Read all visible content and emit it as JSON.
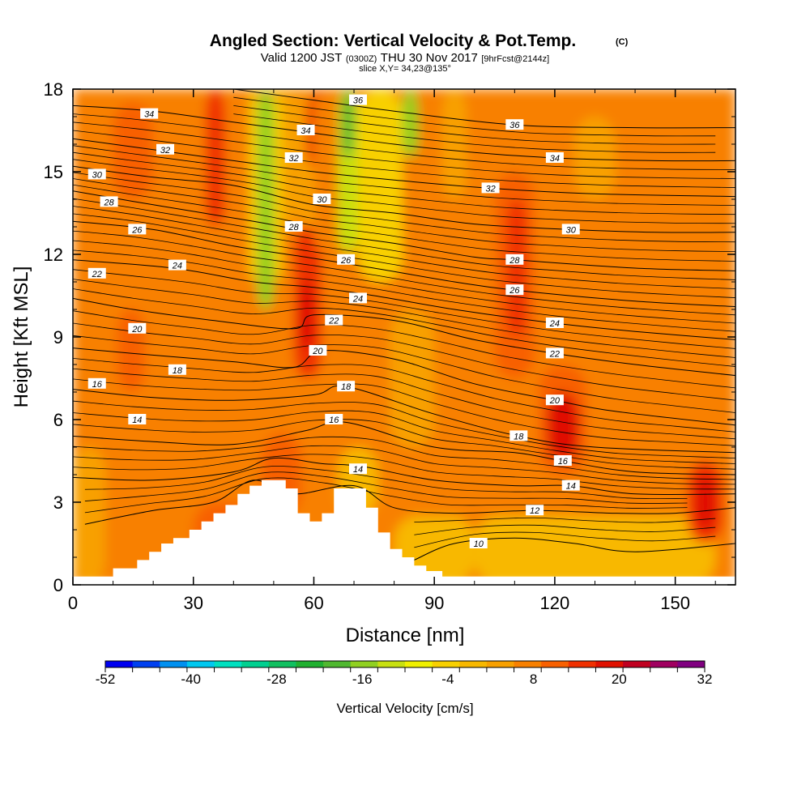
{
  "title": "Angled Section: Vertical Velocity & Pot.Temp.",
  "title_unit": "(C)",
  "subtitle_pre": "Valid 1200 JST",
  "subtitle_utc": "(0300Z)",
  "subtitle_date": "THU 30 Nov 2017",
  "subtitle_fcst": "[9hrFcst@2144z]",
  "slice_label": "slice X,Y= 34,23@135°",
  "chart_data": {
    "type": "heatmap",
    "xlabel": "Distance [nm]",
    "ylabel": "Height [Kft MSL]",
    "xlim": [
      0,
      165
    ],
    "ylim": [
      0,
      18
    ],
    "x_ticks": [
      "0",
      "30",
      "60",
      "90",
      "120",
      "150"
    ],
    "y_ticks": [
      "0",
      "3",
      "6",
      "9",
      "12",
      "15",
      "18"
    ],
    "colorbar": {
      "label": "Vertical Velocity [cm/s]",
      "tick_labels": [
        "-52",
        "-40",
        "-28",
        "-16",
        "-4",
        "8",
        "20",
        "32"
      ],
      "min": -52,
      "max": 32,
      "step": 4,
      "colors": [
        "#0000f0",
        "#0040f0",
        "#0090f0",
        "#00c8f0",
        "#00e0c0",
        "#00d090",
        "#10c060",
        "#20b030",
        "#50b830",
        "#90d020",
        "#c8e010",
        "#f0f000",
        "#f8d000",
        "#f8b800",
        "#f8a000",
        "#f88000",
        "#f86000",
        "#f03000",
        "#e01000",
        "#c00020",
        "#a00060",
        "#800080"
      ]
    },
    "field_regions": [
      {
        "x": [
          0,
          165
        ],
        "y": [
          0,
          18
        ],
        "w": 8
      },
      {
        "x": [
          0,
          8
        ],
        "y": [
          0,
          5
        ],
        "w": 4
      },
      {
        "x": [
          30,
          45
        ],
        "y": [
          0.4,
          3
        ],
        "w": 12
      },
      {
        "x": [
          47,
          57
        ],
        "y": [
          2.5,
          5.5
        ],
        "w": 12
      },
      {
        "x": [
          66,
          76
        ],
        "y": [
          2.5,
          5
        ],
        "w": 0
      },
      {
        "x": [
          80,
          100
        ],
        "y": [
          0,
          2.5
        ],
        "w": 0
      },
      {
        "x": [
          100,
          160
        ],
        "y": [
          0,
          2.5
        ],
        "w": 0
      },
      {
        "x": [
          11,
          18
        ],
        "y": [
          7,
          10
        ],
        "w": 12
      },
      {
        "x": [
          10,
          20
        ],
        "y": [
          14,
          17.5
        ],
        "w": 12
      },
      {
        "x": [
          33,
          38
        ],
        "y": [
          13,
          18
        ],
        "w": 16
      },
      {
        "x": [
          46,
          50
        ],
        "y": [
          10,
          18
        ],
        "w": -16
      },
      {
        "x": [
          44,
          46
        ],
        "y": [
          11,
          18
        ],
        "w": -4
      },
      {
        "x": [
          50,
          52
        ],
        "y": [
          11,
          18
        ],
        "w": -4
      },
      {
        "x": [
          52,
          56
        ],
        "y": [
          13,
          18
        ],
        "w": 4
      },
      {
        "x": [
          55,
          62
        ],
        "y": [
          7.5,
          13
        ],
        "w": 16
      },
      {
        "x": [
          56,
          60
        ],
        "y": [
          8.5,
          11
        ],
        "w": 20
      },
      {
        "x": [
          56,
          64
        ],
        "y": [
          13,
          18
        ],
        "w": 4
      },
      {
        "x": [
          58,
          65
        ],
        "y": [
          15,
          18
        ],
        "w": 16
      },
      {
        "x": [
          60,
          66
        ],
        "y": [
          12,
          18
        ],
        "w": 8
      },
      {
        "x": [
          66,
          71
        ],
        "y": [
          12,
          18
        ],
        "w": -12
      },
      {
        "x": [
          67,
          70
        ],
        "y": [
          15.5,
          18
        ],
        "w": -20
      },
      {
        "x": [
          71,
          82
        ],
        "y": [
          11,
          18
        ],
        "w": -4
      },
      {
        "x": [
          82,
          86
        ],
        "y": [
          15.5,
          18
        ],
        "w": -16
      },
      {
        "x": [
          79,
          90
        ],
        "y": [
          5,
          10
        ],
        "w": 4
      },
      {
        "x": [
          105,
          115
        ],
        "y": [
          7.5,
          15
        ],
        "w": 12
      },
      {
        "x": [
          108,
          113
        ],
        "y": [
          9,
          14
        ],
        "w": 16
      },
      {
        "x": [
          116,
          128
        ],
        "y": [
          4,
          8
        ],
        "w": 12
      },
      {
        "x": [
          118,
          126
        ],
        "y": [
          4.5,
          7
        ],
        "w": 20
      },
      {
        "x": [
          153,
          162
        ],
        "y": [
          1.5,
          4.5
        ],
        "w": 16
      },
      {
        "x": [
          155,
          160
        ],
        "y": [
          2,
          4
        ],
        "w": 20
      },
      {
        "x": [
          92,
          98
        ],
        "y": [
          14,
          18
        ],
        "w": 4
      },
      {
        "x": [
          125,
          135
        ],
        "y": [
          14,
          17
        ],
        "w": 4
      }
    ],
    "terrain": [
      [
        0,
        0.3
      ],
      [
        10,
        0.6
      ],
      [
        16,
        0.9
      ],
      [
        19,
        1.2
      ],
      [
        22,
        1.5
      ],
      [
        25,
        1.7
      ],
      [
        29,
        2.0
      ],
      [
        32,
        2.3
      ],
      [
        35,
        2.6
      ],
      [
        38,
        2.9
      ],
      [
        41,
        3.3
      ],
      [
        44,
        3.6
      ],
      [
        47,
        3.8
      ],
      [
        53,
        3.5
      ],
      [
        56,
        2.6
      ],
      [
        59,
        2.3
      ],
      [
        62,
        2.6
      ],
      [
        65,
        3.5
      ],
      [
        70,
        3.5
      ],
      [
        73,
        2.8
      ],
      [
        76,
        1.9
      ],
      [
        79,
        1.3
      ],
      [
        82,
        1.0
      ],
      [
        85,
        0.7
      ],
      [
        88,
        0.5
      ],
      [
        92,
        0.3
      ],
      [
        165,
        0.3
      ]
    ],
    "isentropes": [
      {
        "label": "10",
        "label_x": 101,
        "label_y": 1.5,
        "pts": [
          [
            85,
            0.9
          ],
          [
            95,
            1.5
          ],
          [
            110,
            1.7
          ],
          [
            125,
            1.5
          ],
          [
            140,
            1.2
          ],
          [
            165,
            1.5
          ]
        ]
      },
      {
        "label": "12",
        "label_x": 115,
        "label_y": 2.7,
        "pts": [
          [
            3,
            2.2
          ],
          [
            20,
            2.7
          ],
          [
            35,
            3.0
          ],
          [
            45,
            3.8
          ],
          [
            55,
            3.3
          ],
          [
            70,
            3.6
          ],
          [
            80,
            2.8
          ],
          [
            95,
            2.6
          ],
          [
            115,
            2.7
          ],
          [
            135,
            2.6
          ],
          [
            150,
            2.6
          ],
          [
            165,
            2.8
          ]
        ]
      },
      {
        "label": "14",
        "label_x": 124,
        "label_y": 3.6,
        "pts": [
          [
            0,
            3.9
          ],
          [
            20,
            3.8
          ],
          [
            40,
            4.1
          ],
          [
            50,
            4.6
          ],
          [
            62,
            4.4
          ],
          [
            72,
            4.3
          ],
          [
            90,
            3.8
          ],
          [
            110,
            3.6
          ],
          [
            124,
            3.6
          ],
          [
            140,
            3.3
          ],
          [
            165,
            3.3
          ]
        ]
      },
      {
        "label": "16",
        "label_x": 122,
        "label_y": 4.5,
        "pts": [
          [
            0,
            5.4
          ],
          [
            20,
            5.2
          ],
          [
            40,
            5.1
          ],
          [
            58,
            5.6
          ],
          [
            68,
            5.9
          ],
          [
            90,
            5.0
          ],
          [
            110,
            4.8
          ],
          [
            122,
            4.5
          ],
          [
            140,
            4.1
          ],
          [
            165,
            4.0
          ]
        ]
      },
      {
        "label": "18",
        "label_x": 111,
        "label_y": 5.4,
        "pts": [
          [
            0,
            7.1
          ],
          [
            20,
            6.8
          ],
          [
            40,
            6.7
          ],
          [
            60,
            6.9
          ],
          [
            68,
            7.2
          ],
          [
            90,
            6.2
          ],
          [
            111,
            5.4
          ],
          [
            130,
            5.0
          ],
          [
            165,
            4.8
          ]
        ]
      },
      {
        "label": "20",
        "label_x": 120,
        "label_y": 6.7,
        "pts": [
          [
            0,
            8.6
          ],
          [
            15,
            8.4
          ],
          [
            40,
            8.1
          ],
          [
            55,
            7.9
          ],
          [
            62,
            8.5
          ],
          [
            80,
            8.2
          ],
          [
            100,
            7.3
          ],
          [
            120,
            6.7
          ],
          [
            135,
            6.3
          ],
          [
            165,
            5.8
          ]
        ]
      },
      {
        "label": "22",
        "label_x": 120,
        "label_y": 8.4,
        "pts": [
          [
            0,
            10.4
          ],
          [
            15,
            10.0
          ],
          [
            35,
            9.6
          ],
          [
            55,
            9.3
          ],
          [
            60,
            9.8
          ],
          [
            80,
            9.6
          ],
          [
            100,
            8.9
          ],
          [
            120,
            8.4
          ],
          [
            140,
            8.0
          ],
          [
            165,
            7.6
          ]
        ]
      },
      {
        "label": "24",
        "label_x": 120,
        "label_y": 9.5,
        "pts": [
          [
            0,
            11.8
          ],
          [
            25,
            11.5
          ],
          [
            45,
            11.0
          ],
          [
            60,
            10.8
          ],
          [
            75,
            10.5
          ],
          [
            95,
            10.0
          ],
          [
            120,
            9.5
          ],
          [
            140,
            9.2
          ],
          [
            165,
            8.9
          ]
        ]
      },
      {
        "label": "26",
        "label_x": 110,
        "label_y": 10.7,
        "pts": [
          [
            0,
            13.2
          ],
          [
            20,
            12.9
          ],
          [
            40,
            12.3
          ],
          [
            58,
            11.9
          ],
          [
            75,
            11.5
          ],
          [
            95,
            11.0
          ],
          [
            110,
            10.7
          ],
          [
            140,
            10.3
          ],
          [
            165,
            10.1
          ]
        ]
      },
      {
        "label": "28",
        "label_x": 110,
        "label_y": 11.8,
        "pts": [
          [
            0,
            14.3
          ],
          [
            20,
            13.8
          ],
          [
            45,
            13.2
          ],
          [
            60,
            12.8
          ],
          [
            80,
            12.4
          ],
          [
            100,
            11.9
          ],
          [
            110,
            11.8
          ],
          [
            140,
            11.5
          ],
          [
            165,
            11.4
          ]
        ]
      },
      {
        "label": "30",
        "label_x": 124,
        "label_y": 12.9,
        "pts": [
          [
            0,
            15.2
          ],
          [
            20,
            14.8
          ],
          [
            40,
            14.5
          ],
          [
            60,
            13.8
          ],
          [
            80,
            13.5
          ],
          [
            100,
            13.1
          ],
          [
            124,
            12.9
          ],
          [
            145,
            12.8
          ],
          [
            165,
            12.8
          ]
        ]
      },
      {
        "label": "32",
        "label_x": 104,
        "label_y": 14.4,
        "pts": [
          [
            0,
            16.2
          ],
          [
            20,
            15.8
          ],
          [
            40,
            15.4
          ],
          [
            60,
            15.0
          ],
          [
            80,
            14.7
          ],
          [
            104,
            14.4
          ],
          [
            130,
            14.2
          ],
          [
            165,
            14.1
          ]
        ]
      },
      {
        "label": "34",
        "label_x": 120,
        "label_y": 15.5,
        "pts": [
          [
            0,
            17.4
          ],
          [
            20,
            17.2
          ],
          [
            40,
            16.8
          ],
          [
            60,
            16.4
          ],
          [
            80,
            16.0
          ],
          [
            100,
            15.7
          ],
          [
            120,
            15.5
          ],
          [
            145,
            15.4
          ],
          [
            165,
            15.4
          ]
        ]
      },
      {
        "label": "36",
        "label_x": 110,
        "label_y": 16.7,
        "pts": [
          [
            40,
            18.0
          ],
          [
            60,
            17.6
          ],
          [
            80,
            17.2
          ],
          [
            110,
            16.7
          ],
          [
            140,
            16.6
          ],
          [
            165,
            16.6
          ]
        ]
      }
    ],
    "contour_labels": [
      {
        "text": "34",
        "x": 19,
        "y": 17.1
      },
      {
        "text": "32",
        "x": 23,
        "y": 15.8
      },
      {
        "text": "30",
        "x": 6,
        "y": 14.9
      },
      {
        "text": "28",
        "x": 9,
        "y": 13.9
      },
      {
        "text": "26",
        "x": 16,
        "y": 12.9
      },
      {
        "text": "24",
        "x": 26,
        "y": 11.6
      },
      {
        "text": "22",
        "x": 6,
        "y": 11.3
      },
      {
        "text": "20",
        "x": 16,
        "y": 9.3
      },
      {
        "text": "18",
        "x": 26,
        "y": 7.8
      },
      {
        "text": "16",
        "x": 6,
        "y": 7.3
      },
      {
        "text": "14",
        "x": 16,
        "y": 6.0
      },
      {
        "text": "34",
        "x": 58,
        "y": 16.5
      },
      {
        "text": "32",
        "x": 55,
        "y": 15.5
      },
      {
        "text": "30",
        "x": 62,
        "y": 14.0
      },
      {
        "text": "28",
        "x": 55,
        "y": 13.0
      },
      {
        "text": "26",
        "x": 68,
        "y": 11.8
      },
      {
        "text": "24",
        "x": 71,
        "y": 10.4
      },
      {
        "text": "22",
        "x": 65,
        "y": 9.6
      },
      {
        "text": "20",
        "x": 61,
        "y": 8.5
      },
      {
        "text": "18",
        "x": 68,
        "y": 7.2
      },
      {
        "text": "16",
        "x": 65,
        "y": 6.0
      },
      {
        "text": "14",
        "x": 71,
        "y": 4.2
      },
      {
        "text": "36",
        "x": 71,
        "y": 17.6
      }
    ]
  }
}
